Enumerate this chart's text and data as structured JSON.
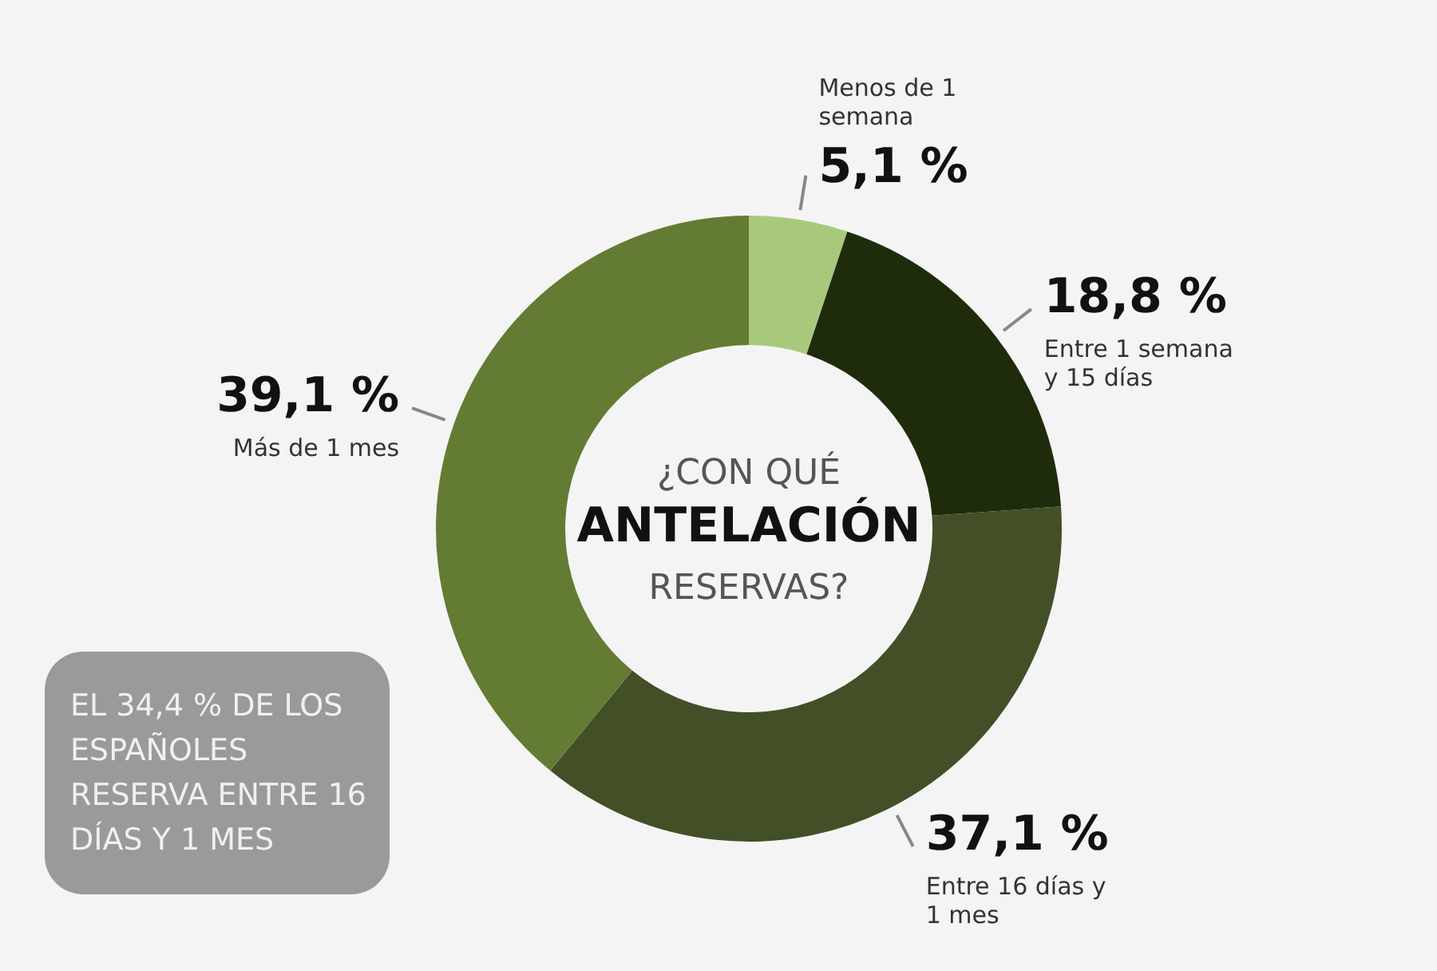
{
  "chart_data": {
    "type": "donut",
    "title": "¿CON QUÉ ANTELACIÓN RESERVAS?",
    "categories": [
      "Menos de 1 semana",
      "Entre 1 semana y 15 días",
      "Entre 16 días y 1 mes",
      "Más de 1 mes"
    ],
    "values": [
      5.1,
      18.8,
      37.1,
      39.1
    ],
    "value_labels": [
      "5,1 %",
      "18,8 %",
      "37,1 %",
      "39,1 %"
    ],
    "colors": [
      "#a8c97c",
      "#1f2c0b",
      "#424f27",
      "#647b34"
    ],
    "annotations": [
      "EL 34,4 % DE LOS ESPAÑOLES RESERVA ENTRE 16 DÍAS Y 1 MES"
    ]
  }
}
